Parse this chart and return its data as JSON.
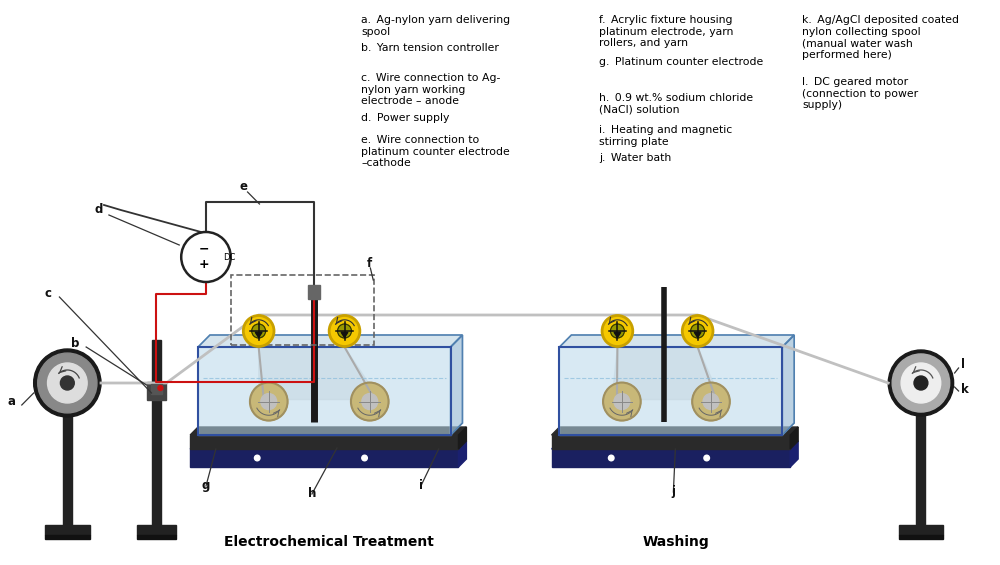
{
  "background_color": "#ffffff",
  "label_col1": [
    "a",
    "b",
    "c",
    "d",
    "e"
  ],
  "label_col2": [
    "f",
    "g",
    "h",
    "i",
    "j"
  ],
  "label_col3": [
    "k",
    "l"
  ],
  "text_col1": [
    "Ag-nylon yarn delivering\nspool",
    "Yarn tension controller",
    "Wire connection to Ag-\nnylon yarn working\nelectrode – anode",
    "Power supply",
    "Wire connection to\nplatinum counter electrode\n–cathode"
  ],
  "text_col2": [
    "Acrylic fixture housing\nplatinum electrode, yarn\nrollers, and yarn",
    "Platinum counter electrode",
    "0.9 wt.% sodium chloride\n(NaCl) solution",
    "Heating and magnetic\nstirring plate",
    "Water bath"
  ],
  "text_col3": [
    "Ag/AgCl deposited coated\nnylon collecting spool\n(manual water wash\nperformed here)",
    "DC geared motor\n(connection to power\nsupply)"
  ],
  "section_label1": "Electrochemical Treatment",
  "section_label2": "Washing",
  "yellow": "#F5C800",
  "yellow_dark": "#C8A000",
  "yellow_rim": "#888800",
  "blue_tank": "#B8D8EA",
  "blue_tank_side": "#8AAECC",
  "blue_tank_dark": "#3050A0",
  "dark_gray": "#2a2a2a",
  "mid_gray": "#555555",
  "light_gray": "#AAAAAA",
  "navy": "#1a2060",
  "tan": "#C8B878",
  "tan_dark": "#A09060",
  "red_wire": "#CC1111",
  "black": "#000000",
  "white": "#FFFFFF",
  "spool_outer": "#888888",
  "spool_inner": "#DDDDDD",
  "spool_hub": "#444444"
}
